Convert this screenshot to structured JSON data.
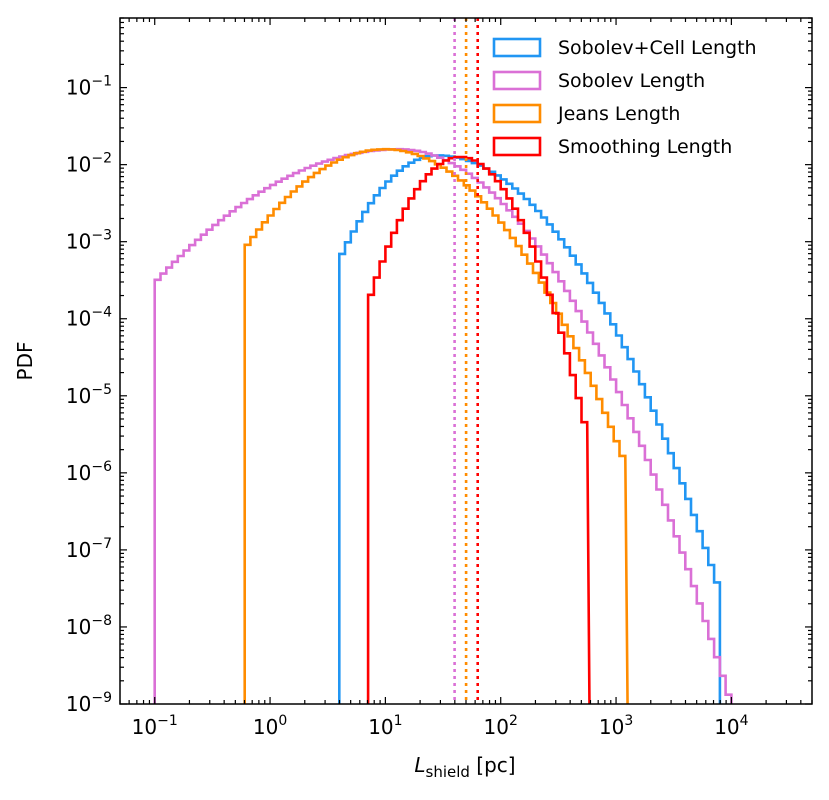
{
  "chart_data": {
    "type": "histogram",
    "xscale": "log",
    "yscale": "log",
    "xlim": [
      0.05,
      50000
    ],
    "ylim": [
      1e-09,
      0.8
    ],
    "xlabel": {
      "main": "L",
      "sub": "shield",
      "unit": " [pc]"
    },
    "ylabel": "PDF",
    "x_ticks": [
      {
        "value": 0.1,
        "base": "10",
        "exp": "−1"
      },
      {
        "value": 1,
        "base": "10",
        "exp": "0"
      },
      {
        "value": 10,
        "base": "10",
        "exp": "1"
      },
      {
        "value": 100,
        "base": "10",
        "exp": "2"
      },
      {
        "value": 1000,
        "base": "10",
        "exp": "3"
      },
      {
        "value": 10000,
        "base": "10",
        "exp": "4"
      }
    ],
    "y_ticks": [
      {
        "value": 1e-09,
        "base": "10",
        "exp": "−9"
      },
      {
        "value": 1e-08,
        "base": "10",
        "exp": "−8"
      },
      {
        "value": 1e-07,
        "base": "10",
        "exp": "−7"
      },
      {
        "value": 1e-06,
        "base": "10",
        "exp": "−6"
      },
      {
        "value": 1e-05,
        "base": "10",
        "exp": "−5"
      },
      {
        "value": 0.0001,
        "base": "10",
        "exp": "−4"
      },
      {
        "value": 0.001,
        "base": "10",
        "exp": "−3"
      },
      {
        "value": 0.01,
        "base": "10",
        "exp": "−2"
      },
      {
        "value": 0.1,
        "base": "10",
        "exp": "−1"
      }
    ],
    "legend_position": "top-right",
    "series": [
      {
        "name": "Sobolev+Cell Length",
        "key": "sobolev-cell",
        "color": "#2196f3",
        "log10_x_range": [
          0.6,
          3.9
        ],
        "log10_peak_x": 1.45,
        "log10_peak_y": -1.88,
        "sigma_left": 0.34,
        "sigma_right": 0.48,
        "median_log10_x": null
      },
      {
        "name": "Sobolev Length",
        "key": "sobolev",
        "color": "#da70d6",
        "log10_x_range": [
          -1.0,
          4.0
        ],
        "log10_peak_x": 1.12,
        "log10_peak_y": -1.8,
        "sigma_left": 0.75,
        "sigma_right": 0.5,
        "median_log10_x": 1.6
      },
      {
        "name": "Jeans Length",
        "key": "jeans",
        "color": "#ff8c00",
        "log10_x_range": [
          -0.22,
          3.1
        ],
        "log10_peak_x": 1.0,
        "log10_peak_y": -1.8,
        "sigma_left": 0.5,
        "sigma_right": 0.48,
        "median_log10_x": 1.7
      },
      {
        "name": "Smoothing Length",
        "key": "smoothing",
        "color": "#ff0000",
        "log10_x_range": [
          0.85,
          2.77
        ],
        "log10_peak_x": 1.65,
        "log10_peak_y": -1.9,
        "sigma_left": 0.27,
        "sigma_right": 0.27,
        "median_log10_x": 1.8
      }
    ]
  }
}
